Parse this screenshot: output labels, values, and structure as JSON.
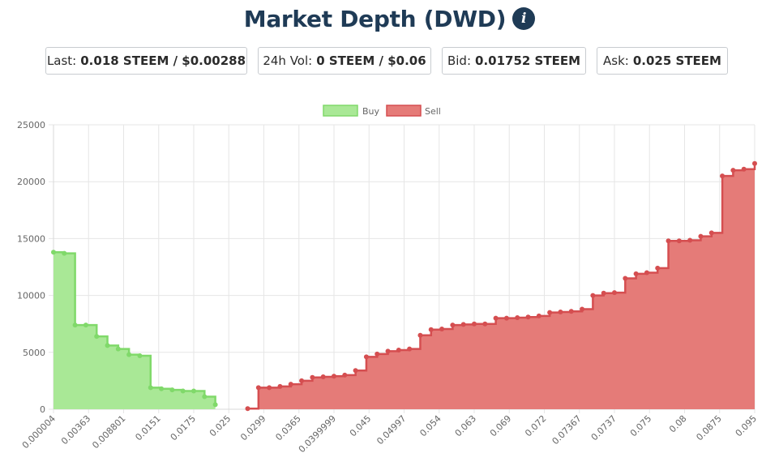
{
  "header": {
    "title": "Market Depth (DWD)",
    "info_icon": "info-circle-icon",
    "title_color": "#1f3b56"
  },
  "stats": {
    "last_label": "Last:",
    "last_value": "0.018 STEEM / $0.00288",
    "vol_label": "24h Vol:",
    "vol_value": "0 STEEM / $0.06",
    "bid_label": "Bid:",
    "bid_value": "0.01752 STEEM",
    "ask_label": "Ask:",
    "ask_value": "0.025 STEEM"
  },
  "chart_data": {
    "type": "area",
    "legend": [
      "Buy",
      "Sell"
    ],
    "legend_position": "top-center",
    "grid": true,
    "ylim": [
      0,
      25000
    ],
    "y_ticks": [
      "0",
      "5000",
      "10000",
      "15000",
      "20000",
      "25000"
    ],
    "x_tick_labels": [
      "0.000004",
      "0.00363",
      "0.008801",
      "0.0151",
      "0.0175",
      "0.025",
      "0.0299",
      "0.0365",
      "0.0399999",
      "0.045",
      "0.04997",
      "0.054",
      "0.063",
      "0.069",
      "0.072",
      "0.07367",
      "0.0737",
      "0.075",
      "0.08",
      "0.0875",
      "0.095"
    ],
    "colors": {
      "buy_line": "#80d96a",
      "buy_fill": "#a9e896",
      "sell_line": "#d54e50",
      "sell_fill": "#e57b78"
    },
    "series": [
      {
        "name": "Buy",
        "values": [
          13800,
          13700,
          7400,
          7400,
          6400,
          5600,
          5300,
          4800,
          4700,
          1900,
          1800,
          1700,
          1600,
          1600,
          1100,
          400
        ]
      },
      {
        "name": "Sell",
        "values": [
          50,
          1900,
          1900,
          2000,
          2200,
          2500,
          2800,
          2850,
          2900,
          3000,
          3400,
          4600,
          4850,
          5100,
          5200,
          5300,
          6500,
          7000,
          7050,
          7400,
          7450,
          7500,
          7500,
          8000,
          8000,
          8050,
          8100,
          8200,
          8500,
          8550,
          8600,
          8800,
          10000,
          10200,
          10250,
          11500,
          11900,
          12000,
          12400,
          14800,
          14800,
          14850,
          15200,
          15500,
          20500,
          21000,
          21100,
          21600
        ]
      }
    ]
  }
}
